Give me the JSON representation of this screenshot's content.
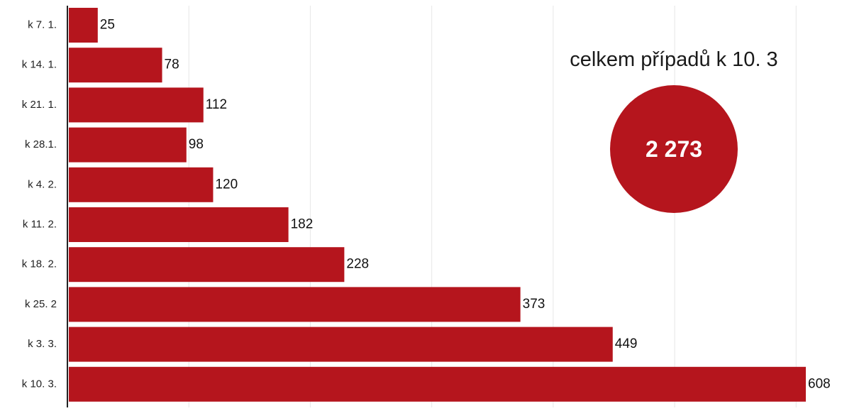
{
  "colors": {
    "bar": "#b5151d",
    "circle": "#b5151d",
    "axis": "#222222",
    "grid": "#e6e6e6",
    "tick_text": "#222222",
    "value_text": "#111111"
  },
  "chart_data": {
    "type": "bar",
    "orientation": "horizontal",
    "categories": [
      "k 7. 1.",
      "k 14. 1.",
      "k 21. 1.",
      "k 28.1.",
      "k 4. 2.",
      "k 11. 2.",
      "k 18. 2.",
      "k 25. 2",
      "k 3. 3.",
      "k 10. 3."
    ],
    "values": [
      25,
      78,
      112,
      98,
      120,
      182,
      228,
      373,
      449,
      608
    ],
    "data_labels": [
      "25",
      "78",
      "112",
      "98",
      "120",
      "182",
      "228",
      "373",
      "449",
      "608"
    ],
    "title": "",
    "xlabel": "",
    "ylabel": "",
    "xlim": [
      0,
      640
    ],
    "grid": true
  },
  "summary": {
    "label": "celkem případů k 10. 3",
    "value": "2 273"
  }
}
